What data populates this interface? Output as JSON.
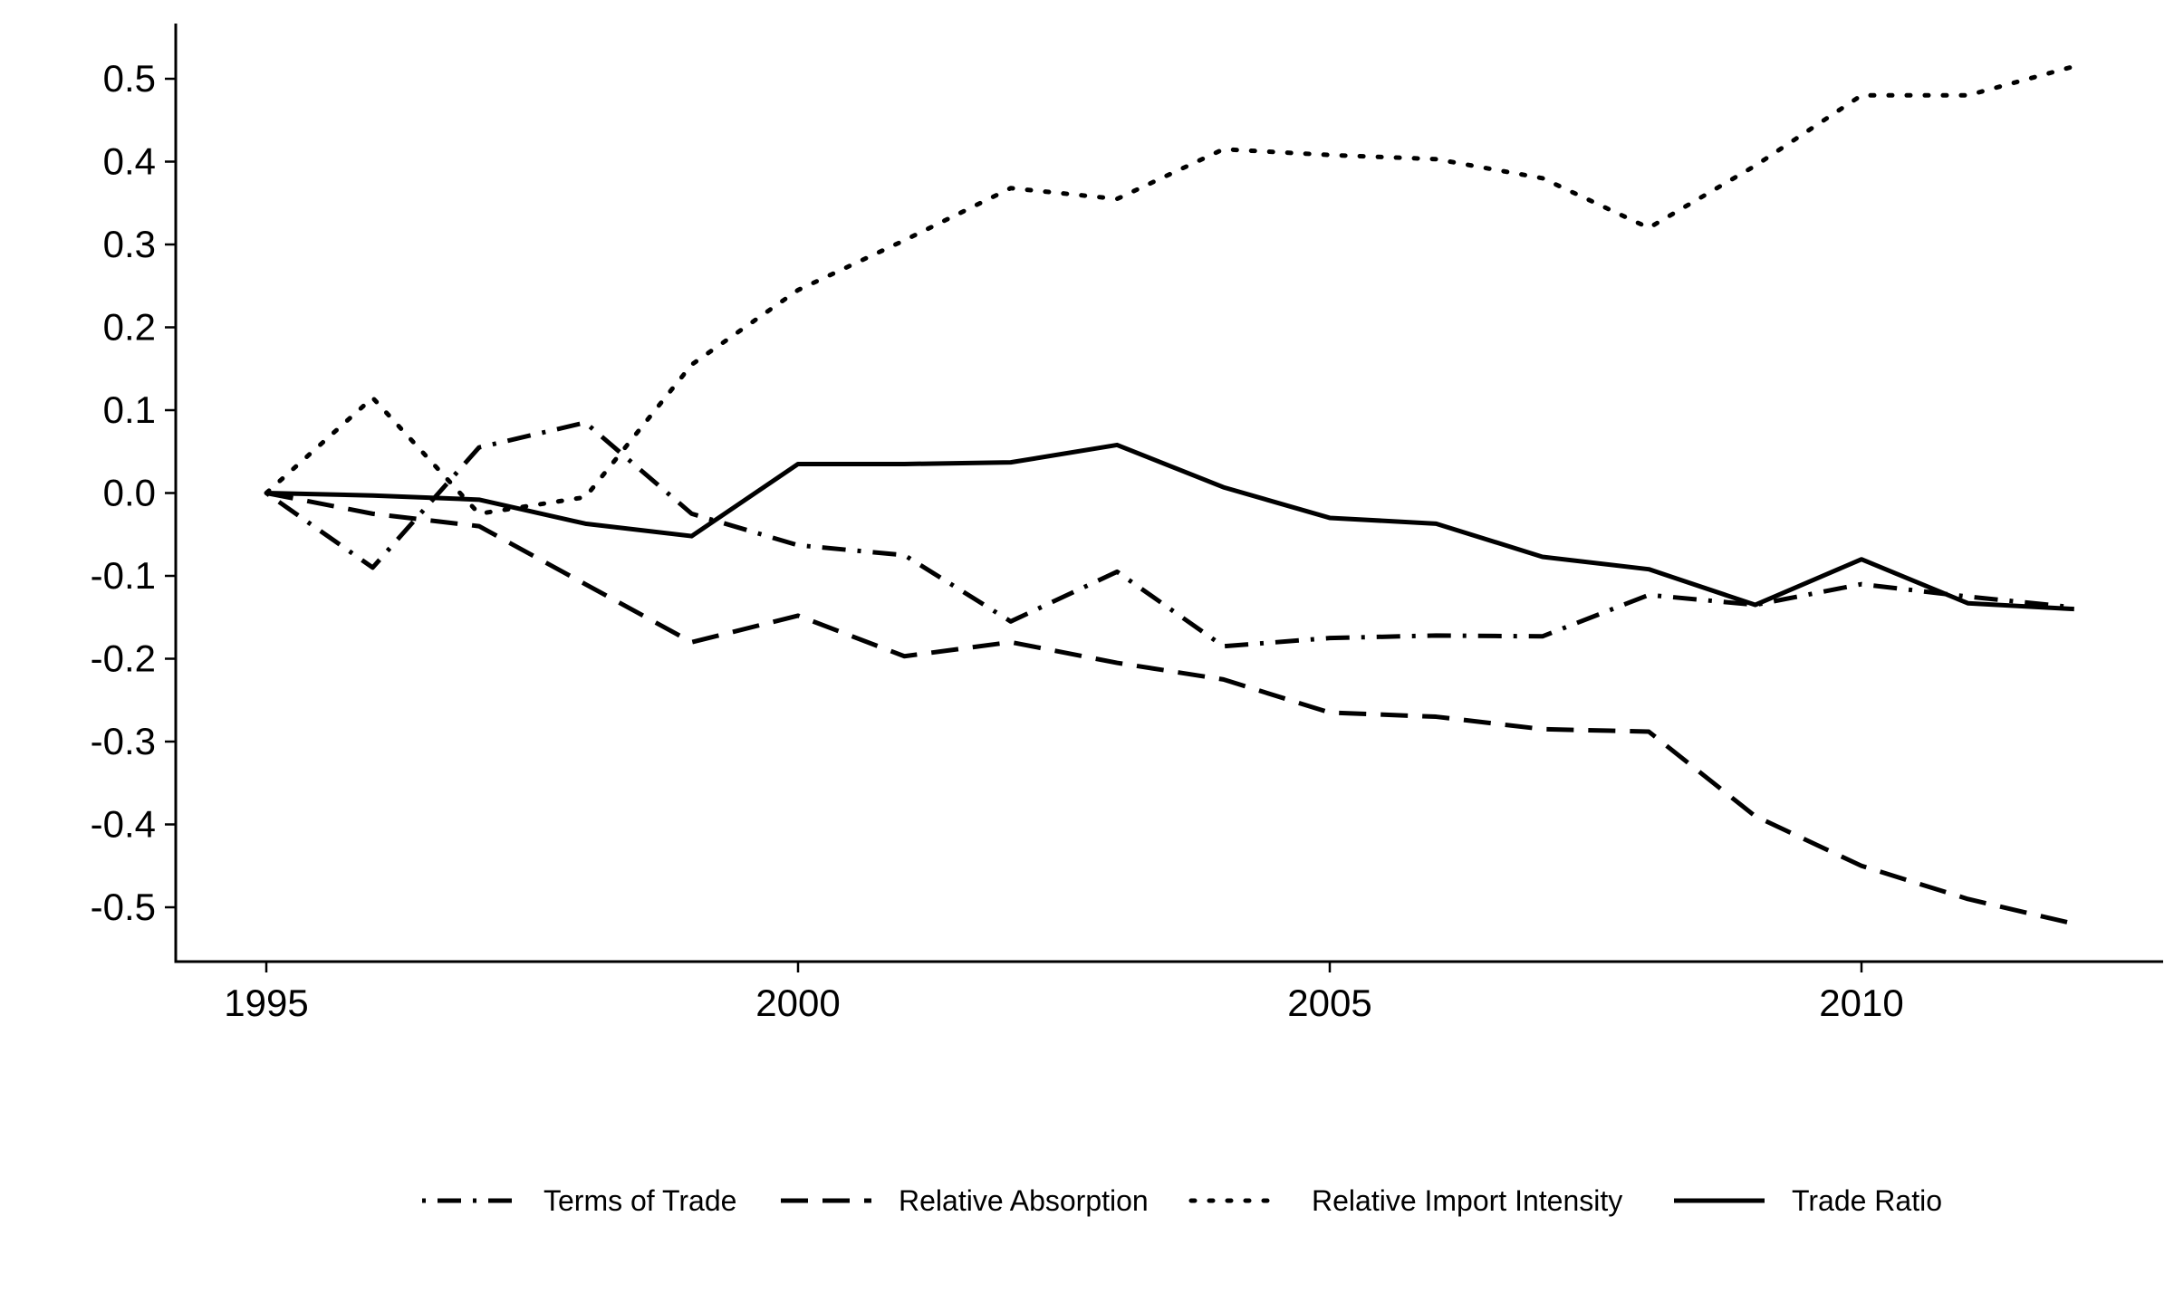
{
  "chart_data": {
    "type": "line",
    "title": "",
    "xlabel": "",
    "ylabel": "",
    "xlim": [
      1994.1,
      2012.8
    ],
    "ylim": [
      -0.565,
      0.565
    ],
    "x_ticks": [
      1995,
      2000,
      2005,
      2010
    ],
    "x_tick_labels": [
      "1995",
      "2000",
      "2005",
      "2010"
    ],
    "y_ticks": [
      0.5,
      0.4,
      0.3,
      0.2,
      0.1,
      0.0,
      -0.1,
      -0.2,
      -0.3,
      -0.4,
      -0.5
    ],
    "y_tick_labels": [
      "0.5",
      "0.4",
      "0.3",
      "0.2",
      "0.1",
      "0.0",
      "-0.1",
      "-0.2",
      "-0.3",
      "-0.4",
      "-0.5"
    ],
    "grid": false,
    "legend_position": "bottom",
    "x": [
      1995,
      1996,
      1997,
      1998,
      1999,
      2000,
      2001,
      2002,
      2003,
      2004,
      2005,
      2006,
      2007,
      2008,
      2009,
      2010,
      2011,
      2012
    ],
    "series": [
      {
        "name": "Terms of Trade",
        "line_style": "dashdot",
        "values": [
          0.0,
          -0.09,
          0.055,
          0.085,
          -0.025,
          -0.063,
          -0.075,
          -0.155,
          -0.095,
          -0.185,
          -0.175,
          -0.172,
          -0.173,
          -0.123,
          -0.135,
          -0.11,
          -0.125,
          -0.138
        ]
      },
      {
        "name": "Relative Absorption",
        "line_style": "dashed",
        "values": [
          0.0,
          -0.025,
          -0.04,
          -0.11,
          -0.18,
          -0.148,
          -0.197,
          -0.18,
          -0.205,
          -0.225,
          -0.265,
          -0.27,
          -0.285,
          -0.288,
          -0.39,
          -0.45,
          -0.49,
          -0.52
        ]
      },
      {
        "name": "Relative Import Intensity",
        "line_style": "dotted",
        "values": [
          0.0,
          0.115,
          -0.025,
          -0.005,
          0.155,
          0.245,
          0.305,
          0.368,
          0.355,
          0.415,
          0.408,
          0.403,
          0.38,
          0.32,
          0.395,
          0.48,
          0.48,
          0.515
        ]
      },
      {
        "name": "Trade Ratio",
        "line_style": "solid",
        "values": [
          0.0,
          -0.003,
          -0.008,
          -0.037,
          -0.052,
          0.035,
          0.035,
          0.037,
          0.058,
          0.007,
          -0.03,
          -0.037,
          -0.077,
          -0.092,
          -0.135,
          -0.08,
          -0.133,
          -0.14
        ]
      }
    ]
  }
}
